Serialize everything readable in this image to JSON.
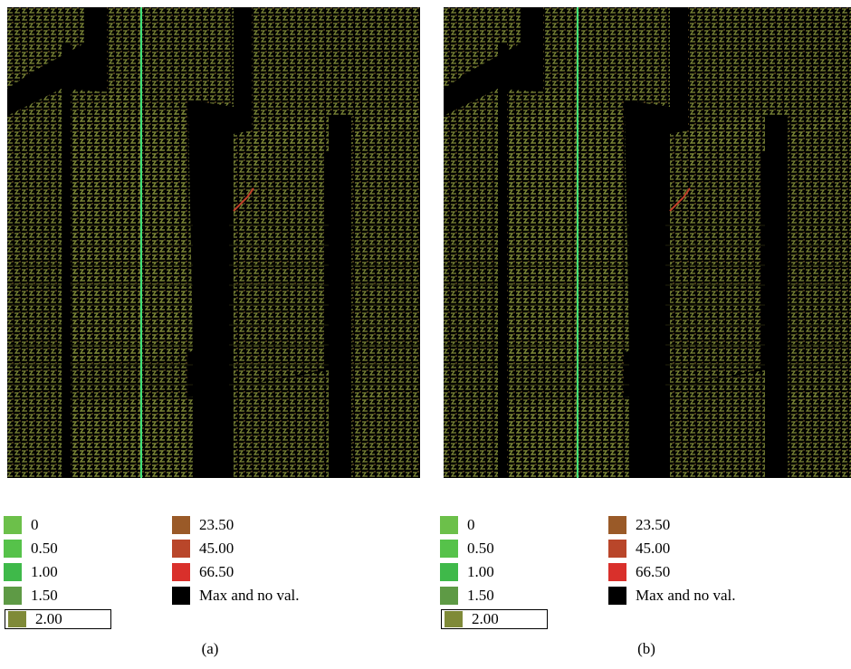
{
  "panels": [
    {
      "id": "a",
      "caption": "(a)",
      "legend_left": [
        {
          "label": "0",
          "color": "#6cc04a"
        },
        {
          "label": "0.50",
          "color": "#56c24a"
        },
        {
          "label": "1.00",
          "color": "#3fb94a"
        },
        {
          "label": "1.50",
          "color": "#5e9a45"
        },
        {
          "label": "2.00",
          "color": "#7f8a38",
          "selected": true
        }
      ],
      "legend_right": [
        {
          "label": "23.50",
          "color": "#9a5a28"
        },
        {
          "label": "45.00",
          "color": "#b9462a"
        },
        {
          "label": "66.50",
          "color": "#d9302b"
        },
        {
          "label": "Max and no val.",
          "color": "#000000"
        }
      ]
    },
    {
      "id": "b",
      "caption": "(b)",
      "legend_left": [
        {
          "label": "0",
          "color": "#6cc04a"
        },
        {
          "label": "0.50",
          "color": "#56c24a"
        },
        {
          "label": "1.00",
          "color": "#3fb94a"
        },
        {
          "label": "1.50",
          "color": "#5e9a45"
        },
        {
          "label": "2.00",
          "color": "#7f8a38",
          "selected": true
        }
      ],
      "legend_right": [
        {
          "label": "23.50",
          "color": "#9a5a28"
        },
        {
          "label": "45.00",
          "color": "#b9462a"
        },
        {
          "label": "66.50",
          "color": "#d9302b"
        },
        {
          "label": "Max and no val.",
          "color": "#000000"
        }
      ]
    }
  ],
  "colors": {
    "vector_field": "#7f8a38",
    "vector_field_alt": "#8a6a30",
    "background": "#000000",
    "highlight_line": "#3fe07a"
  }
}
